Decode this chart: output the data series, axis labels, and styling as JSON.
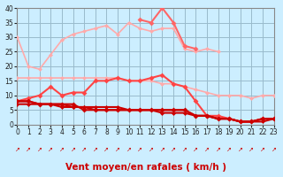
{
  "x": [
    0,
    1,
    2,
    3,
    4,
    5,
    6,
    7,
    8,
    9,
    10,
    11,
    12,
    13,
    14,
    15,
    16,
    17,
    18,
    19,
    20,
    21,
    22,
    23
  ],
  "series": [
    {
      "color": "#ffaaaa",
      "linewidth": 1.2,
      "marker": "D",
      "markersize": 2.5,
      "values": [
        30,
        20,
        19,
        24,
        29,
        31,
        32,
        33,
        34,
        31,
        35,
        33,
        32,
        33,
        33,
        26,
        25,
        26,
        25,
        null,
        null,
        null,
        null,
        null
      ]
    },
    {
      "color": "#ffaaaa",
      "linewidth": 1.2,
      "marker": "D",
      "markersize": 2.5,
      "values": [
        16,
        16,
        16,
        16,
        16,
        16,
        16,
        16,
        16,
        16,
        15,
        15,
        15,
        14,
        14,
        13,
        12,
        11,
        10,
        10,
        10,
        9,
        10,
        10
      ]
    },
    {
      "color": "#ff6666",
      "linewidth": 1.5,
      "marker": "D",
      "markersize": 3,
      "values": [
        null,
        null,
        null,
        null,
        null,
        null,
        null,
        null,
        null,
        null,
        null,
        36,
        35,
        40,
        35,
        27,
        26,
        null,
        null,
        null,
        null,
        null,
        null,
        null
      ]
    },
    {
      "color": "#ff4444",
      "linewidth": 1.5,
      "marker": "D",
      "markersize": 3,
      "values": [
        8,
        9,
        10,
        13,
        10,
        11,
        11,
        15,
        15,
        16,
        15,
        15,
        16,
        17,
        14,
        13,
        8,
        3,
        3,
        2,
        1,
        1,
        2,
        2
      ]
    },
    {
      "color": "#cc0000",
      "linewidth": 1.5,
      "marker": "D",
      "markersize": 3,
      "values": [
        8,
        8,
        7,
        7,
        7,
        7,
        5,
        5,
        5,
        5,
        5,
        5,
        5,
        5,
        5,
        5,
        3,
        3,
        2,
        2,
        1,
        1,
        2,
        2
      ]
    },
    {
      "color": "#cc0000",
      "linewidth": 1.5,
      "marker": "D",
      "markersize": 2.5,
      "values": [
        8,
        8,
        7,
        7,
        7,
        6,
        6,
        6,
        6,
        6,
        5,
        5,
        5,
        5,
        5,
        5,
        3,
        3,
        2,
        2,
        1,
        1,
        2,
        2
      ]
    },
    {
      "color": "#cc0000",
      "linewidth": 1.5,
      "marker": "D",
      "markersize": 2.5,
      "values": [
        7,
        7,
        7,
        7,
        6,
        6,
        6,
        5,
        5,
        5,
        5,
        5,
        5,
        4,
        4,
        4,
        3,
        3,
        2,
        2,
        1,
        1,
        1,
        2
      ]
    }
  ],
  "xlabel": "Vent moyen/en rafales ( km/h )",
  "xlim": [
    0,
    23
  ],
  "ylim": [
    0,
    40
  ],
  "yticks": [
    0,
    5,
    10,
    15,
    20,
    25,
    30,
    35,
    40
  ],
  "xticks": [
    0,
    1,
    2,
    3,
    4,
    5,
    6,
    7,
    8,
    9,
    10,
    11,
    12,
    13,
    14,
    15,
    16,
    17,
    18,
    19,
    20,
    21,
    22,
    23
  ],
  "bg_color": "#cceeff",
  "grid_color": "#99bbcc",
  "arrow_color": "#cc0000",
  "xlabel_color": "#cc0000",
  "xlabel_fontsize": 7.5
}
